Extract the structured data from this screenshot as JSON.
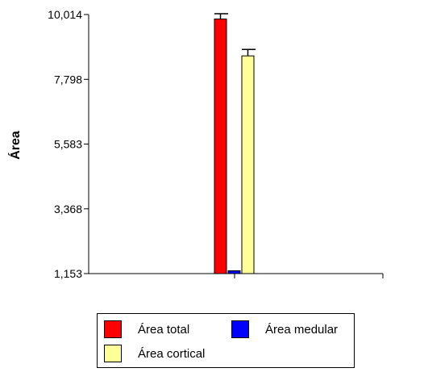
{
  "chart_data": {
    "type": "bar",
    "title": "",
    "xlabel": "",
    "ylabel": "Área",
    "ylim": [
      1.153,
      10.014
    ],
    "yticks": [
      "1,153",
      "3,368",
      "5,583",
      "7,798",
      "10,014"
    ],
    "ytick_values": [
      1.153,
      3.368,
      5.583,
      7.798,
      10.014
    ],
    "grid": false,
    "legend_position": "bottom",
    "series": [
      {
        "name": "Área total",
        "color": "#ff0000",
        "value": 9.86,
        "error": 0.18
      },
      {
        "name": "Área medular",
        "color": "#0000ff",
        "value": 1.25,
        "error": 0.0
      },
      {
        "name": "Área cortical",
        "color": "#ffff99",
        "value": 8.6,
        "error": 0.22
      }
    ]
  }
}
